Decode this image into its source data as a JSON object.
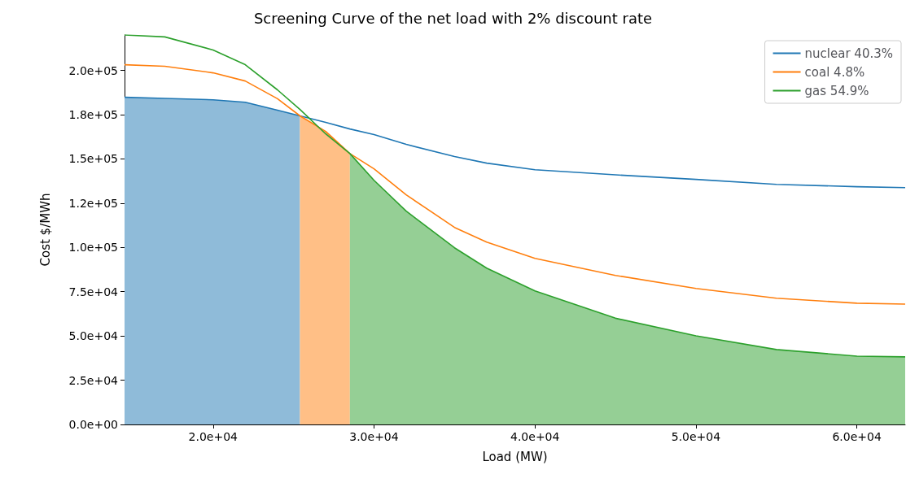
{
  "chart_data": {
    "type": "line",
    "title": "Screening Curve of the net load with 2% discount rate",
    "xlabel": "Load (MW)",
    "ylabel": "Cost $/MWh",
    "x": [
      14500,
      17000,
      20000,
      22000,
      24000,
      25400,
      27000,
      28500,
      30000,
      32000,
      35000,
      37000,
      40000,
      45000,
      50000,
      55000,
      60000,
      63000
    ],
    "series": [
      {
        "name": "nuclear 40.3%",
        "color": "#1f77b4",
        "values": [
          184800,
          184200,
          183400,
          182000,
          177500,
          174300,
          170600,
          166900,
          163700,
          158200,
          151300,
          147600,
          143900,
          141000,
          138400,
          135600,
          134300,
          133800
        ]
      },
      {
        "name": "coal 4.8%",
        "color": "#ff7f0e",
        "values": [
          203200,
          202300,
          198600,
          194000,
          184000,
          174300,
          165500,
          153000,
          144400,
          129700,
          111300,
          103000,
          93800,
          84200,
          76800,
          71300,
          68500,
          68000
        ]
      },
      {
        "name": "gas 54.9%",
        "color": "#2ca02c",
        "values": [
          220000,
          218900,
          211500,
          203200,
          189000,
          177900,
          164100,
          153000,
          137900,
          120500,
          99800,
          88300,
          75400,
          60000,
          50100,
          42300,
          38600,
          38200
        ]
      },
      {
        "type": "area",
        "color": "#8fbbd9",
        "x": [
          14500,
          17000,
          20000,
          22000,
          24000,
          25400
        ],
        "values": [
          184800,
          184200,
          183400,
          182000,
          177500,
          174300
        ]
      },
      {
        "type": "area",
        "color": "#ffbf86",
        "x": [
          25400,
          27000,
          28500
        ],
        "values": [
          174300,
          165500,
          153000
        ]
      },
      {
        "type": "area",
        "color": "#95cf95",
        "x": [
          28500,
          30000,
          32000,
          35000,
          37000,
          40000,
          45000,
          50000,
          55000,
          60000,
          63000
        ],
        "values": [
          153000,
          137900,
          120500,
          99800,
          88300,
          75400,
          60000,
          50100,
          42300,
          38600,
          38200
        ]
      }
    ],
    "xlim": [
      14500,
      63000
    ],
    "xticks": [
      {
        "value": 20000,
        "label": "2.0e+04"
      },
      {
        "value": 30000,
        "label": "3.0e+04"
      },
      {
        "value": 40000,
        "label": "4.0e+04"
      },
      {
        "value": 50000,
        "label": "5.0e+04"
      },
      {
        "value": 60000,
        "label": "6.0e+04"
      }
    ],
    "ylim": [
      0,
      220000
    ],
    "yticks": [
      {
        "value": 0,
        "label": "0.0e+00"
      },
      {
        "value": 25000,
        "label": "2.5e+04"
      },
      {
        "value": 50000,
        "label": "5.0e+04"
      },
      {
        "value": 75000,
        "label": "7.5e+04"
      },
      {
        "value": 100000,
        "label": "1.0e+05"
      },
      {
        "value": 125000,
        "label": "1.2e+05"
      },
      {
        "value": 150000,
        "label": "1.5e+05"
      },
      {
        "value": 175000,
        "label": "1.8e+05"
      },
      {
        "value": 200000,
        "label": "2.0e+05"
      }
    ],
    "legend": "top right",
    "marker": "none",
    "line_style": "solid"
  }
}
